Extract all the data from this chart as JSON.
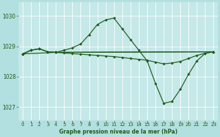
{
  "title": "Graphe pression niveau de la mer (hPa)",
  "background_color": "#b2dfdf",
  "plot_bg_color": "#c5e8e8",
  "line_color": "#1e5c1e",
  "grid_color": "#ffffff",
  "xlim": [
    -0.5,
    23.5
  ],
  "ylim": [
    1026.55,
    1030.45
  ],
  "yticks": [
    1027,
    1028,
    1029,
    1030
  ],
  "xticks": [
    0,
    1,
    2,
    3,
    4,
    5,
    6,
    7,
    8,
    9,
    10,
    11,
    12,
    13,
    14,
    15,
    16,
    17,
    18,
    19,
    20,
    21,
    22,
    23
  ],
  "lines": [
    {
      "x": [
        0,
        1,
        2,
        3,
        4,
        5,
        6,
        7,
        8,
        9,
        10,
        11,
        12,
        13,
        14,
        15,
        16,
        17,
        18,
        19,
        20,
        21,
        22,
        23
      ],
      "y": [
        1028.75,
        1028.87,
        1028.92,
        1028.82,
        1028.8,
        1028.87,
        1028.95,
        1029.08,
        1029.38,
        1029.72,
        1029.87,
        1029.93,
        1029.58,
        1029.22,
        1028.87,
        1028.52,
        1027.78,
        1027.12,
        1027.18,
        1027.58,
        1028.08,
        1028.52,
        1028.77,
        1028.82
      ]
    },
    {
      "x": [
        0,
        1,
        2,
        3,
        4,
        5,
        6,
        7,
        8,
        9,
        10,
        11,
        12,
        13,
        14,
        15,
        16,
        17,
        18,
        19,
        20,
        21,
        22,
        23
      ],
      "y": [
        1028.75,
        1028.87,
        1028.92,
        1028.82,
        1028.8,
        1028.78,
        1028.76,
        1028.74,
        1028.72,
        1028.7,
        1028.68,
        1028.66,
        1028.63,
        1028.6,
        1028.57,
        1028.54,
        1028.48,
        1028.42,
        1028.45,
        1028.5,
        1028.6,
        1028.7,
        1028.77,
        1028.82
      ]
    },
    {
      "x": [
        0,
        1,
        2,
        3,
        4,
        23
      ],
      "y": [
        1028.75,
        1028.87,
        1028.92,
        1028.82,
        1028.8,
        1028.82
      ]
    },
    {
      "x": [
        0,
        4,
        23
      ],
      "y": [
        1028.75,
        1028.8,
        1028.82
      ]
    }
  ]
}
